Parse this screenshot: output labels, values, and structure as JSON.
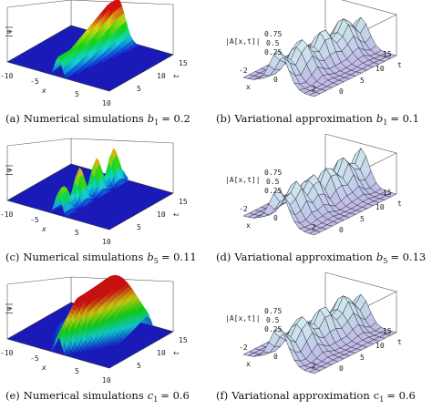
{
  "panels": [
    {
      "caption": {
        "label": "(a)",
        "text": "Numerical simulations",
        "var": "b",
        "sub": "1",
        "eq": "= 0.2"
      },
      "z_label": "|ψ|",
      "x_label": "x",
      "t_label": "t",
      "x_ticks": [
        "-10",
        "-5",
        "5",
        "10"
      ],
      "t_ticks": [
        "5",
        "10",
        "15"
      ]
    },
    {
      "caption": {
        "label": "(b)",
        "text": "Variational approximation",
        "var": "b",
        "sub": "1",
        "eq": "= 0.1"
      },
      "z_label": "|A[x,t]|",
      "z_ticks": [
        "0.75",
        "0.5",
        "0.25"
      ],
      "x_label": "x",
      "t_label": "t",
      "x_ticks": [
        "-2",
        "0",
        "2"
      ],
      "t_ticks": [
        "0",
        "5",
        "10",
        "15"
      ]
    },
    {
      "caption": {
        "label": "(c)",
        "text": "Numerical simulations",
        "var": "b",
        "sub": "5",
        "eq": "= 0.11"
      },
      "z_label": "|ψ|",
      "x_label": "x",
      "t_label": "t",
      "x_ticks": [
        "-10",
        "-5",
        "5",
        "10"
      ],
      "t_ticks": [
        "5",
        "10",
        "15"
      ]
    },
    {
      "caption": {
        "label": "(d)",
        "text": "Variational approximation",
        "var": "b",
        "sub": "5",
        "eq": "= 0.13"
      },
      "z_label": "|A[x,t]|",
      "z_ticks": [
        "0.75",
        "0.5",
        "0.25"
      ],
      "x_label": "x",
      "t_label": "t",
      "x_ticks": [
        "-2",
        "0",
        "2"
      ],
      "t_ticks": [
        "0",
        "5",
        "10",
        "15"
      ]
    },
    {
      "caption": {
        "label": "(e)",
        "text": "Numerical simulations",
        "var": "c",
        "sub": "1",
        "eq": "= 0.6"
      },
      "z_label": "|ψ|",
      "x_label": "x",
      "t_label": "t",
      "x_ticks": [
        "-10",
        "-5",
        "5",
        "10"
      ],
      "t_ticks": [
        "5",
        "10",
        "15"
      ]
    },
    {
      "caption": {
        "label": "(f)",
        "text": "Variational approximation",
        "var": "c",
        "sub": "1",
        "eq": "= 0.6"
      },
      "z_label": "|A[x,t]|",
      "z_ticks": [
        "0.75",
        "0.5",
        "0.25"
      ],
      "x_label": "x",
      "t_label": "t",
      "x_ticks": [
        "-2",
        "0",
        "2"
      ],
      "t_ticks": [
        "0",
        "5",
        "10",
        "15"
      ]
    }
  ]
}
